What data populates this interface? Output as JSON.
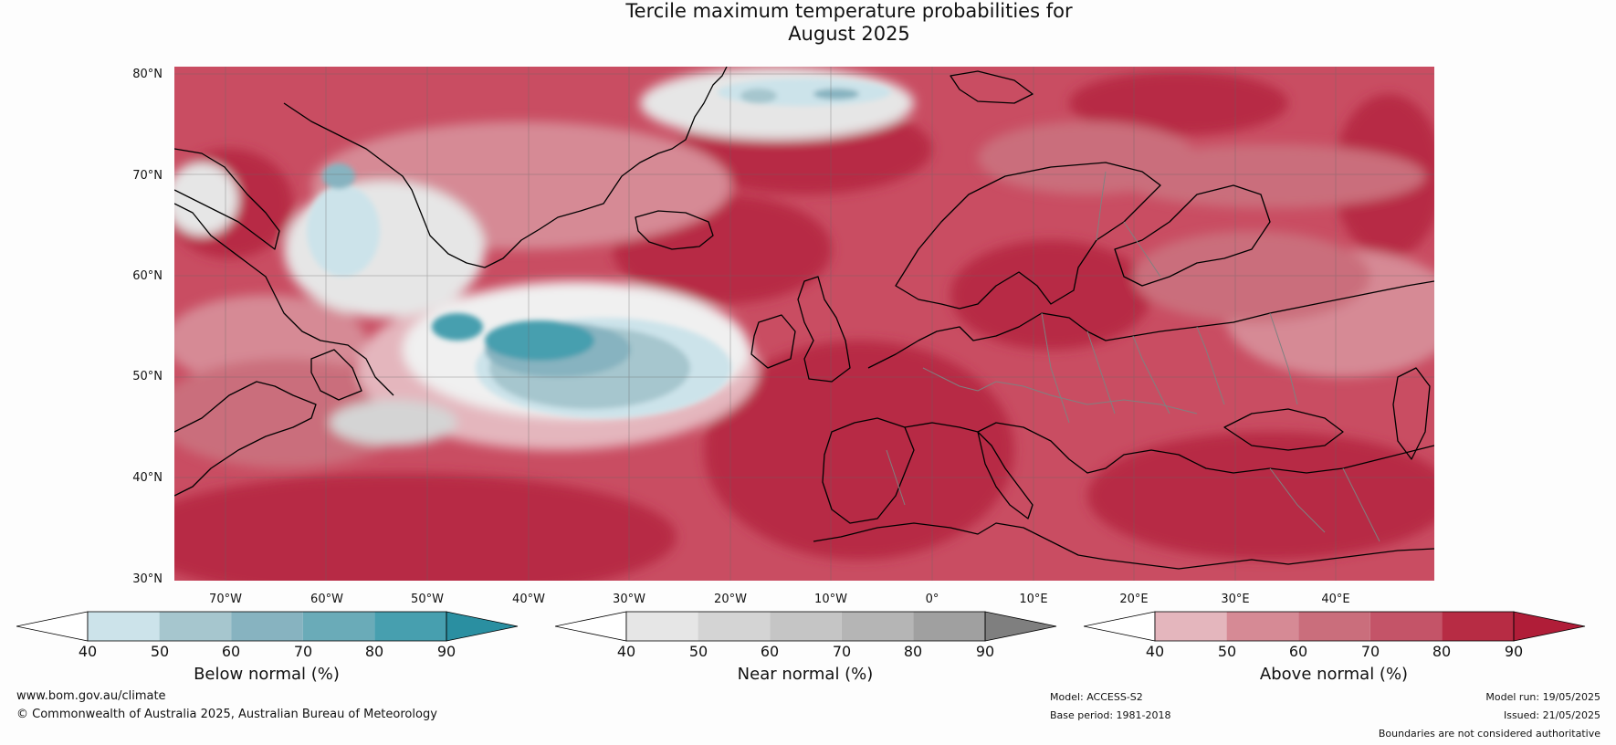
{
  "title_line1": "Tercile maximum temperature probabilities for",
  "title_line2": "August 2025",
  "lat_labels": [
    "80°N",
    "70°N",
    "60°N",
    "50°N",
    "40°N",
    "30°N"
  ],
  "lon_labels": [
    "70°W",
    "60°W",
    "50°W",
    "40°W",
    "30°W",
    "20°W",
    "10°W",
    "0°",
    "10°E",
    "20°E",
    "30°E",
    "40°E"
  ],
  "colorbars": [
    {
      "title": "Below normal (%)",
      "ticks": [
        "40",
        "50",
        "60",
        "70",
        "80",
        "90"
      ],
      "colors": [
        "#ffffff",
        "#cce3ea",
        "#a6c6ce",
        "#87b3c0",
        "#6aabb8",
        "#479faf",
        "#2a8fa1"
      ]
    },
    {
      "title": "Near normal (%)",
      "ticks": [
        "40",
        "50",
        "60",
        "70",
        "80",
        "90"
      ],
      "colors": [
        "#ffffff",
        "#e6e6e6",
        "#d4d4d4",
        "#c5c5c5",
        "#b5b5b5",
        "#a0a0a0",
        "#7f7f7f"
      ]
    },
    {
      "title": "Above normal (%)",
      "ticks": [
        "40",
        "50",
        "60",
        "70",
        "80",
        "90"
      ],
      "colors": [
        "#ffffff",
        "#e4b6bd",
        "#d68a95",
        "#ca6e7c",
        "#c45468",
        "#b72c44",
        "#b01d38"
      ]
    }
  ],
  "footer": {
    "website": "www.bom.gov.au/climate",
    "copyright": "© Commonwealth of Australia 2025, Australian Bureau of Meteorology",
    "model": "Model: ACCESS-S2",
    "base_period": "Base period: 1981-2018",
    "model_run": "Model run: 19/05/2025",
    "issued": "Issued: 21/05/2025",
    "disclaimer": "Boundaries are not considered authoritative"
  },
  "map": {
    "extent": {
      "lon_min": -75,
      "lon_max": 50,
      "lat_min": 30,
      "lat_max": 81
    },
    "background_color": "#c94d62",
    "palette": {
      "above_80": "#b72c44",
      "above_70": "#c45468",
      "above_60": "#ca6e7c",
      "above_50": "#d68a95",
      "above_40": "#e4b6bd",
      "near_50": "#e6e6e6",
      "near_60": "#d4d4d4",
      "below_50": "#cce3ea",
      "below_60": "#a6c6ce",
      "below_70": "#87b3c0",
      "below_80": "#479faf"
    },
    "coastline_color": "#000000",
    "border_color": "#808080"
  }
}
